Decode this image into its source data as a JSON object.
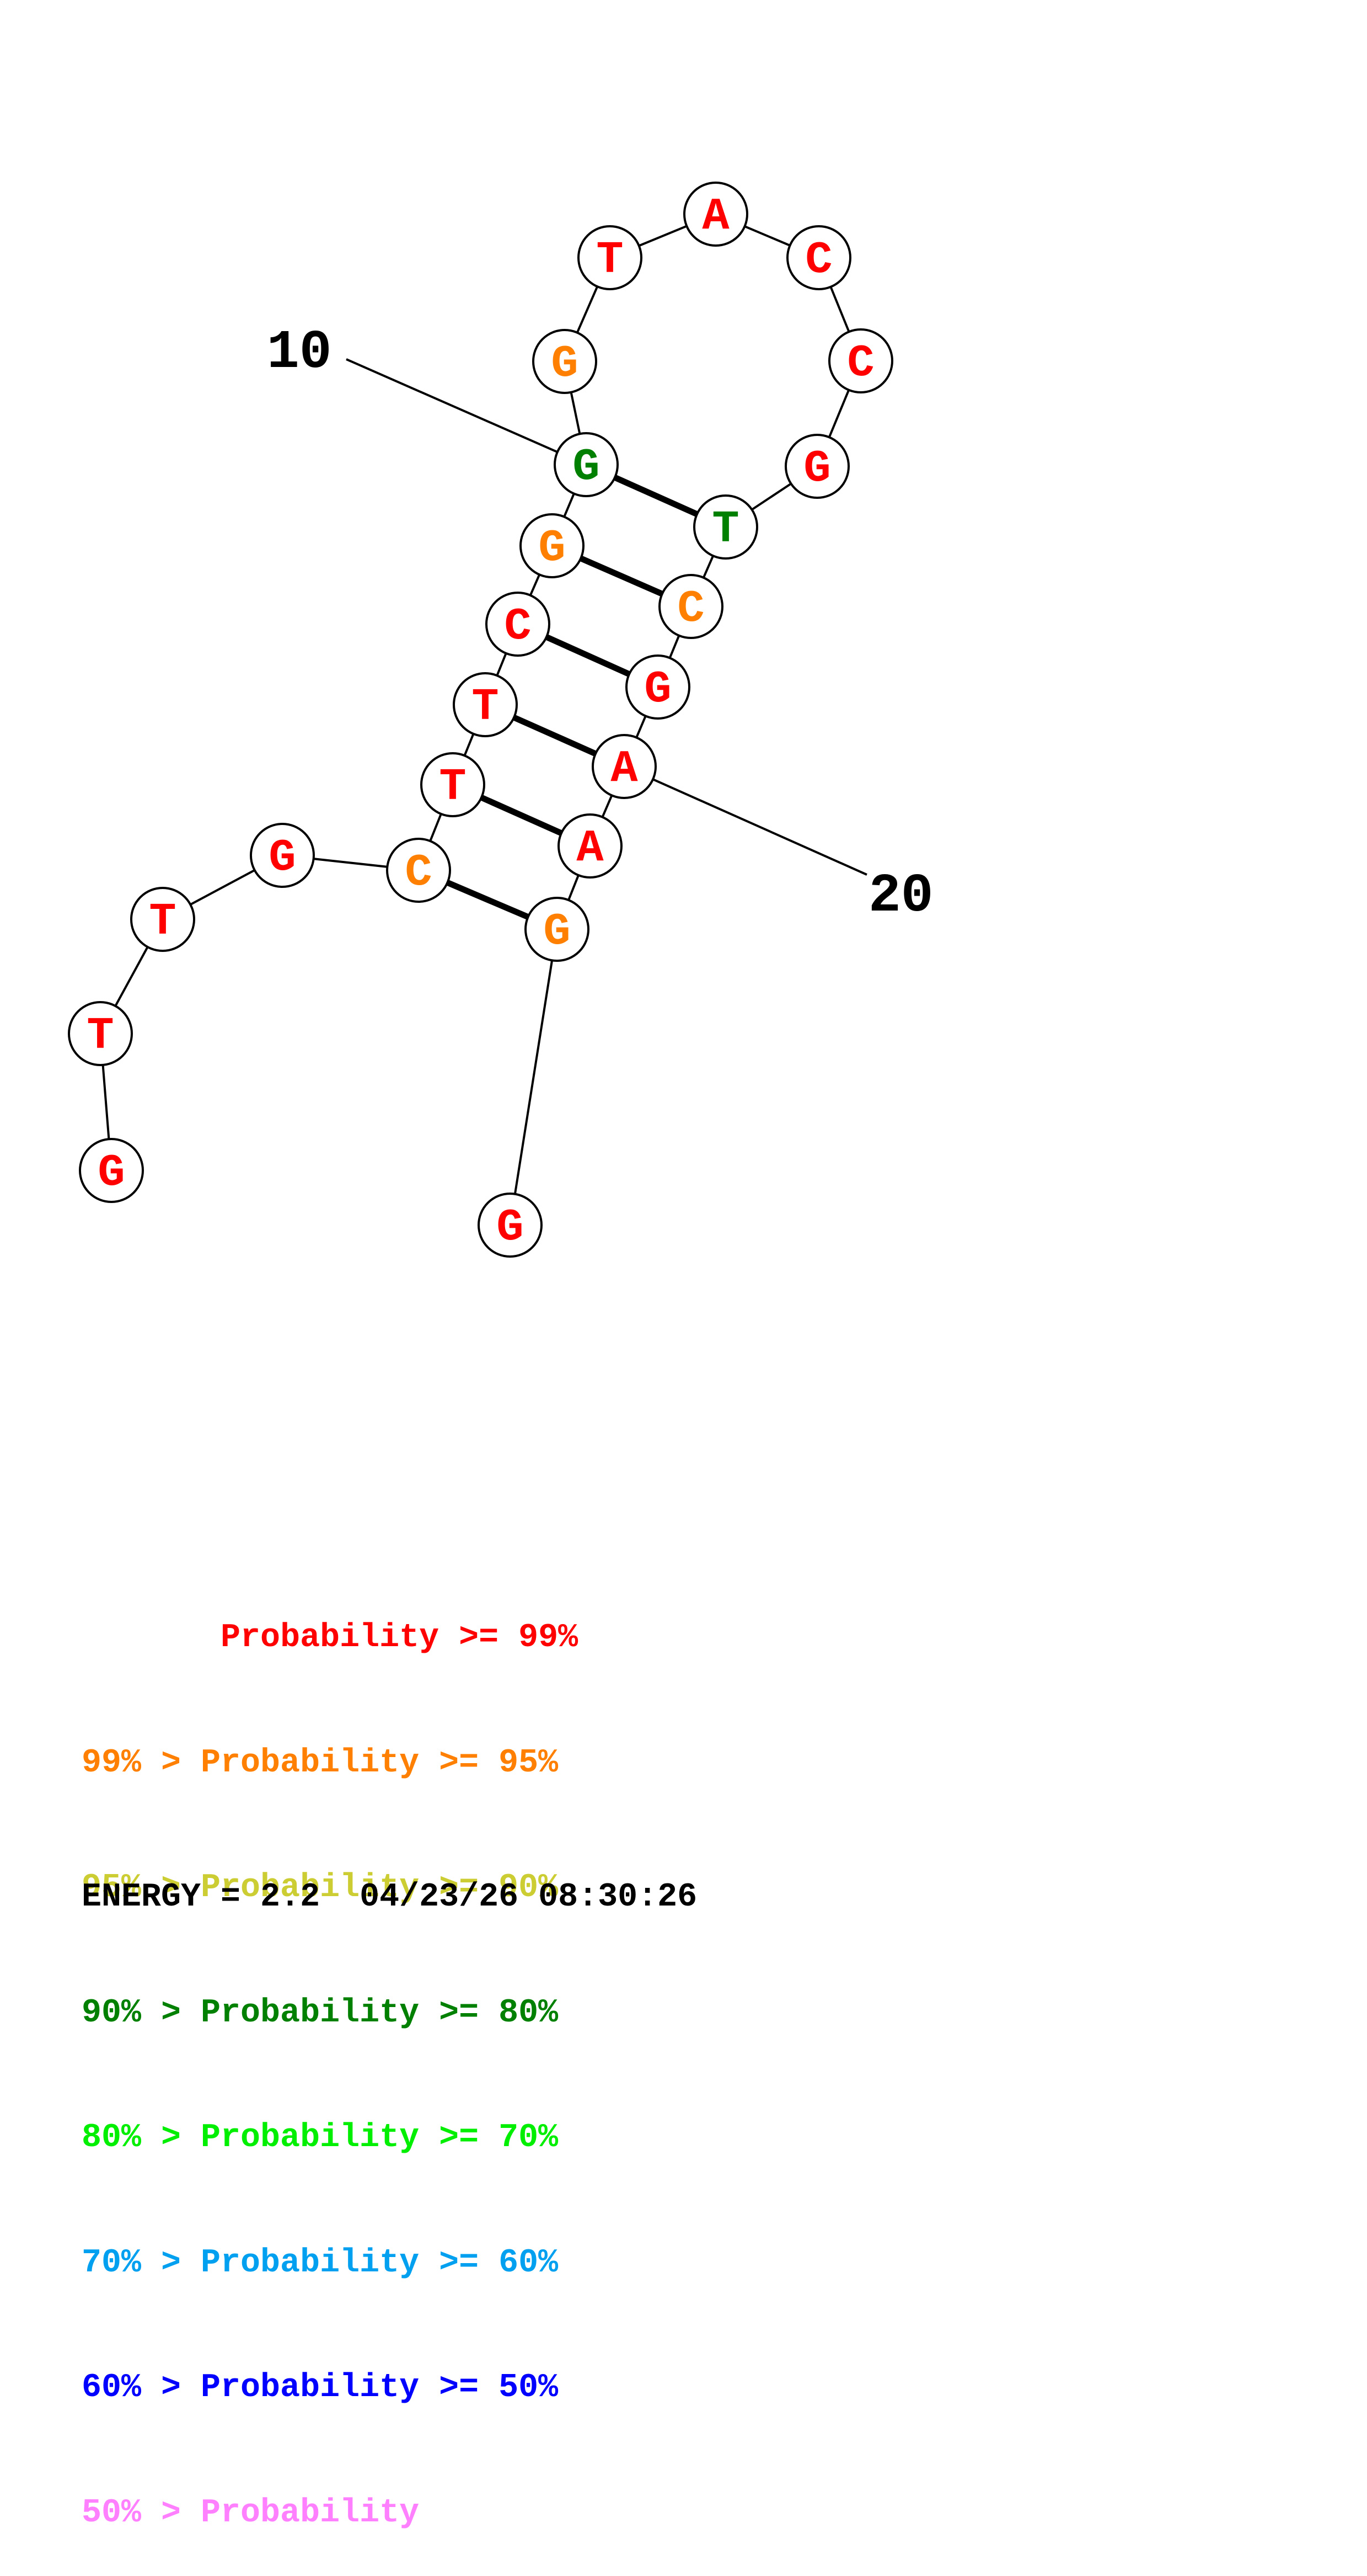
{
  "sequence": [
    {
      "index": 1,
      "base": "G",
      "color": "#ff0000"
    },
    {
      "index": 2,
      "base": "T",
      "color": "#ff0000"
    },
    {
      "index": 3,
      "base": "T",
      "color": "#ff0000"
    },
    {
      "index": 4,
      "base": "G",
      "color": "#ff0000"
    },
    {
      "index": 5,
      "base": "C",
      "color": "#ff8000"
    },
    {
      "index": 6,
      "base": "T",
      "color": "#ff0000"
    },
    {
      "index": 7,
      "base": "T",
      "color": "#ff0000"
    },
    {
      "index": 8,
      "base": "C",
      "color": "#ff0000"
    },
    {
      "index": 9,
      "base": "G",
      "color": "#ff8000"
    },
    {
      "index": 10,
      "base": "G",
      "color": "#008000"
    },
    {
      "index": 11,
      "base": "G",
      "color": "#ff8000"
    },
    {
      "index": 12,
      "base": "T",
      "color": "#ff0000"
    },
    {
      "index": 13,
      "base": "A",
      "color": "#ff0000"
    },
    {
      "index": 14,
      "base": "C",
      "color": "#ff0000"
    },
    {
      "index": 15,
      "base": "C",
      "color": "#ff0000"
    },
    {
      "index": 16,
      "base": "G",
      "color": "#ff0000"
    },
    {
      "index": 17,
      "base": "T",
      "color": "#008000"
    },
    {
      "index": 18,
      "base": "C",
      "color": "#ff8000"
    },
    {
      "index": 19,
      "base": "G",
      "color": "#ff0000"
    },
    {
      "index": 20,
      "base": "A",
      "color": "#ff0000"
    },
    {
      "index": 21,
      "base": "A",
      "color": "#ff0000"
    },
    {
      "index": 22,
      "base": "G",
      "color": "#ff8000"
    },
    {
      "index": 23,
      "base": "G",
      "color": "#ff0000"
    }
  ],
  "pairs": [
    [
      5,
      22
    ],
    [
      6,
      21
    ],
    [
      7,
      20
    ],
    [
      8,
      19
    ],
    [
      9,
      18
    ],
    [
      10,
      17
    ]
  ],
  "position_labels": [
    {
      "text": "10",
      "index": 10
    },
    {
      "text": "20",
      "index": 20
    }
  ],
  "legend": [
    {
      "prefix": "    ",
      "text": "   Probability >= 99%",
      "color": "#ff0000"
    },
    {
      "prefix": "",
      "text": "99% > Probability >= 95%",
      "color": "#ff8000"
    },
    {
      "prefix": "",
      "text": "95% > Probability >= 90%",
      "color": "#cccc33"
    },
    {
      "prefix": "",
      "text": "90% > Probability >= 80%",
      "color": "#008000"
    },
    {
      "prefix": "",
      "text": "80% > Probability >= 70%",
      "color": "#00ee00"
    },
    {
      "prefix": "",
      "text": "70% > Probability >= 60%",
      "color": "#00a0f0"
    },
    {
      "prefix": "",
      "text": "60% > Probability >= 50%",
      "color": "#0000ff"
    },
    {
      "prefix": "",
      "text": "50% > Probability",
      "color": "#ff80ff"
    }
  ],
  "footer": {
    "energy_text": "ENERGY = 2.2  04/23/26 08:30:26"
  }
}
